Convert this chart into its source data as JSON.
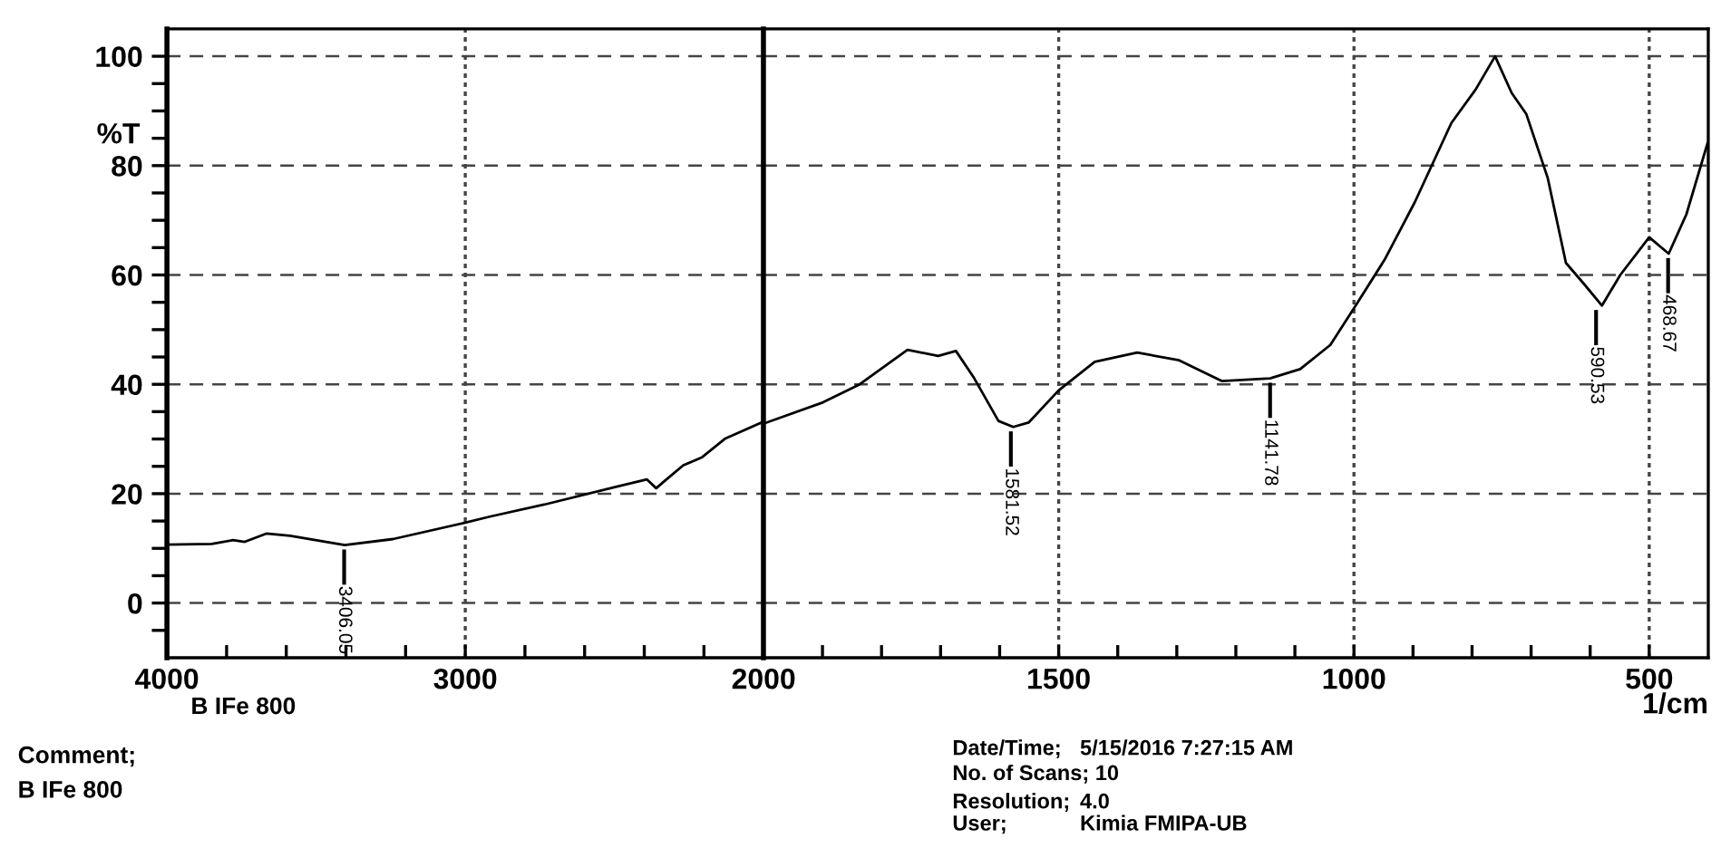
{
  "chart_data": [
    {
      "type": "line",
      "ylabel": "%T",
      "xlim": [
        4000,
        2000
      ],
      "ylim": [
        -10,
        105
      ],
      "xticks": [
        4000,
        {
          "value": 3800,
          "label": null
        },
        {
          "value": 3600,
          "label": null
        },
        {
          "value": 3400,
          "label": null
        },
        {
          "value": 3200,
          "label": null
        },
        3000,
        {
          "value": 2800,
          "label": null
        },
        {
          "value": 2600,
          "label": null
        },
        {
          "value": 2400,
          "label": null
        },
        {
          "value": 2200,
          "label": null
        },
        2000
      ],
      "yticks": [
        {
          "value": -5,
          "label": null
        },
        0,
        {
          "value": 5,
          "label": null
        },
        {
          "value": 10,
          "label": null
        },
        {
          "value": 15,
          "label": null
        },
        20,
        {
          "value": 25,
          "label": null
        },
        {
          "value": 30,
          "label": null
        },
        {
          "value": 35,
          "label": null
        },
        40,
        {
          "value": 45,
          "label": null
        },
        {
          "value": 50,
          "label": null
        },
        {
          "value": 55,
          "label": null
        },
        60,
        {
          "value": 65,
          "label": null
        },
        {
          "value": 70,
          "label": null
        },
        {
          "value": 75,
          "label": null
        },
        80,
        {
          "value": 85,
          "label": null
        },
        {
          "value": 90,
          "label": null
        },
        {
          "value": 95,
          "label": null
        },
        100
      ],
      "grid": "y",
      "marker": "none",
      "line_style": "solid",
      "ref_lines": [
        {
          "axis": "x",
          "value": 3000,
          "color": "#444444",
          "line_style": "dotted"
        }
      ],
      "series": [
        {
          "color": "#000000",
          "x": [
            4000,
            3850,
            3779,
            3739,
            3667,
            3587,
            3404,
            3242,
            3000,
            2918,
            2736,
            2492,
            2391,
            2360,
            2330,
            2269,
            2208,
            2128,
            2000
          ],
          "values": [
            10.7,
            10.8,
            11.5,
            11.2,
            12.7,
            12.3,
            10.6,
            11.7,
            14.7,
            15.8,
            18.0,
            21.3,
            22.6,
            21.0,
            22.4,
            25.2,
            26.6,
            30.1,
            33.2
          ]
        }
      ],
      "annotations": [
        {
          "text": "3406.05",
          "x": 3406,
          "y": 10.6
        },
        "B IFe 800",
        "Comment;",
        "B IFe 800"
      ]
    },
    {
      "type": "line",
      "xlabel": "1/cm",
      "xlim": [
        2000,
        400
      ],
      "ylim": [
        -10,
        105
      ],
      "tick_labels": "x",
      "xticks": [
        {
          "value": 1900,
          "label": null
        },
        {
          "value": 1800,
          "label": null
        },
        {
          "value": 1700,
          "label": null
        },
        {
          "value": 1600,
          "label": null
        },
        1500,
        {
          "value": 1400,
          "label": null
        },
        {
          "value": 1300,
          "label": null
        },
        {
          "value": 1200,
          "label": null
        },
        {
          "value": 1100,
          "label": null
        },
        1000,
        {
          "value": 900,
          "label": null
        },
        {
          "value": 800,
          "label": null
        },
        {
          "value": 700,
          "label": null
        },
        {
          "value": 600,
          "label": null
        },
        500
      ],
      "yticks": [
        0,
        20,
        40,
        60,
        80,
        100
      ],
      "grid": true,
      "marker": "none",
      "line_style": "solid",
      "series": [
        {
          "color": "#000000",
          "x": [
            2000,
            1899,
            1837,
            1756,
            1704,
            1674,
            1643,
            1602,
            1577,
            1551,
            1500,
            1439,
            1367,
            1296,
            1224,
            1142,
            1091,
            1040,
            1000,
            948,
            897,
            835,
            794,
            761,
            733,
            708,
            672,
            641,
            610,
            580,
            549,
            500,
            467,
            437,
            401
          ],
          "values": [
            32.8,
            36.7,
            40,
            46.3,
            45.2,
            46.1,
            41.1,
            33.3,
            32.2,
            33,
            38.9,
            44.1,
            45.8,
            44.4,
            40.6,
            41.1,
            42.8,
            47.2,
            53.9,
            62.8,
            73.3,
            87.8,
            93.9,
            100,
            93.3,
            89.4,
            77.8,
            62.2,
            58.3,
            54.4,
            60,
            66.9,
            63.9,
            71.1,
            84.2
          ]
        }
      ],
      "annotations": [
        {
          "text": "1581.52",
          "x": 1581,
          "y": 32.2
        },
        {
          "text": "1141.78",
          "x": 1142,
          "y": 41.1
        },
        {
          "text": "590.53",
          "x": 590,
          "y": 54.4
        },
        {
          "text": "468.67",
          "x": 468,
          "y": 63.9
        },
        "Date/Time;",
        "5/15/2016 7:27:15 AM",
        "No. of Scans; 10",
        "Resolution;",
        "4.0",
        "User;",
        "Kimia FMIPA-UB"
      ]
    }
  ]
}
